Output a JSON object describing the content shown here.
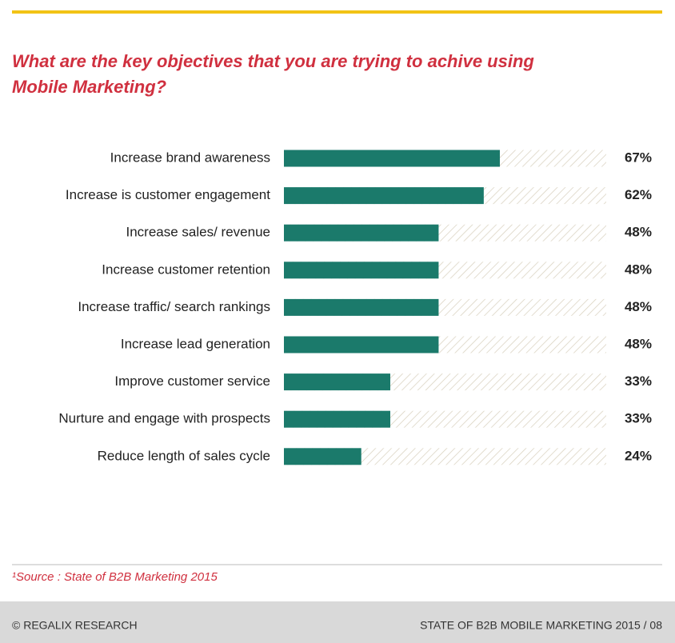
{
  "chart_data": {
    "type": "bar",
    "orientation": "horizontal",
    "title": "What are the key objectives that you are trying to achive using Mobile Marketing?",
    "categories": [
      "Increase brand awareness",
      "Increase is customer engagement",
      "Increase sales/ revenue",
      "Increase customer retention",
      "Increase traffic/ search rankings",
      "Increase lead generation",
      "Improve customer service",
      "Nurture and engage with prospects",
      "Reduce length of sales cycle"
    ],
    "values": [
      67,
      62,
      48,
      48,
      48,
      48,
      33,
      33,
      24
    ],
    "value_labels": [
      "67%",
      "62%",
      "48%",
      "48%",
      "48%",
      "48%",
      "33%",
      "33%",
      "24%"
    ],
    "color": "#1b7a6b",
    "xlim": [
      0,
      100
    ]
  },
  "source": "¹Source : State of B2B Marketing 2015",
  "footer": {
    "left": "© REGALIX RESEARCH",
    "right": "STATE OF B2B MOBILE MARKETING 2015 / 08"
  }
}
